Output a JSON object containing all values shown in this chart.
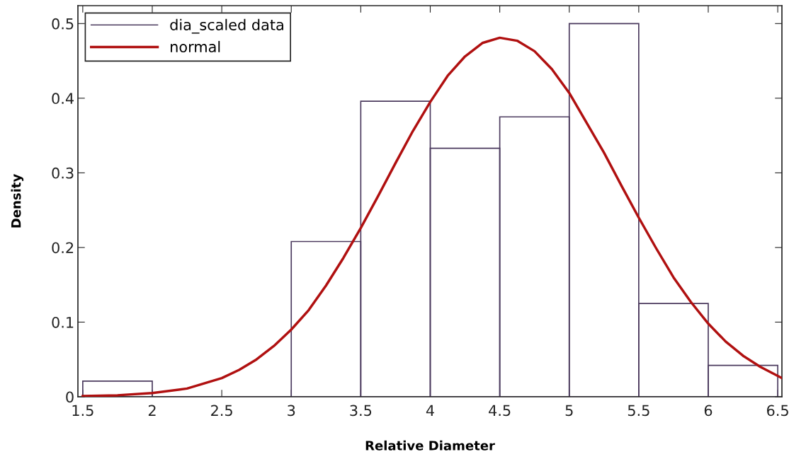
{
  "chart_data": {
    "type": "histogram",
    "xlabel": "Relative Diameter",
    "ylabel": "Density",
    "xlim": [
      1.465,
      6.53
    ],
    "ylim": [
      0,
      0.524
    ],
    "xticks": [
      1.5,
      2,
      2.5,
      3,
      3.5,
      4,
      4.5,
      5,
      5.5,
      6,
      6.5
    ],
    "yticks": [
      0,
      0.1,
      0.2,
      0.3,
      0.4,
      0.5
    ],
    "grid": false,
    "legend": "top left",
    "series": [
      {
        "name": "dia_scaled data",
        "color": "#4b3a5e",
        "bins": [
          1.5,
          2,
          2.5,
          3,
          3.5,
          4,
          4.5,
          5,
          5.5,
          6,
          6.5
        ],
        "values": [
          0.021,
          0,
          0,
          0.208,
          0.396,
          0.333,
          0.375,
          0.5,
          0.125,
          0.042
        ]
      },
      {
        "name": "normal",
        "type": "line",
        "color": "#b01010",
        "x": [
          1.5,
          1.75,
          2.0,
          2.25,
          2.5,
          2.625,
          2.75,
          2.875,
          3.0,
          3.125,
          3.25,
          3.375,
          3.5,
          3.625,
          3.75,
          3.875,
          4.0,
          4.125,
          4.25,
          4.375,
          4.5,
          4.625,
          4.75,
          4.875,
          5.0,
          5.125,
          5.25,
          5.375,
          5.5,
          5.625,
          5.75,
          5.875,
          6.0,
          6.125,
          6.25,
          6.375,
          6.5,
          6.53
        ],
        "values": [
          0.001,
          0.002,
          0.005,
          0.011,
          0.025,
          0.036,
          0.05,
          0.068,
          0.09,
          0.116,
          0.149,
          0.186,
          0.226,
          0.269,
          0.313,
          0.356,
          0.395,
          0.43,
          0.456,
          0.474,
          0.481,
          0.477,
          0.463,
          0.439,
          0.407,
          0.367,
          0.327,
          0.283,
          0.24,
          0.199,
          0.16,
          0.127,
          0.098,
          0.074,
          0.055,
          0.04,
          0.028,
          0.025
        ]
      }
    ]
  }
}
